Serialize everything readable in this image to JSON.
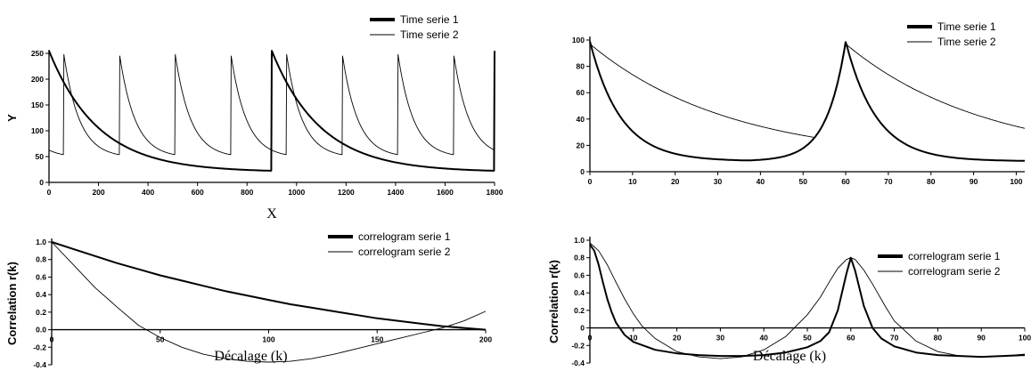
{
  "chart_data": [
    {
      "type": "line",
      "xlabel": "X",
      "ylabel": "Y",
      "xlim": [
        0,
        1800
      ],
      "ylim": [
        0,
        250
      ],
      "xticks": [
        0,
        200,
        400,
        600,
        800,
        1000,
        1200,
        1400,
        1600,
        1800
      ],
      "yticks": [
        0,
        50,
        100,
        150,
        200,
        250
      ],
      "legend": "top-right",
      "series": [
        {
          "name": "Time serie 1",
          "style": "thick",
          "pattern": "decay",
          "period": 900,
          "offset": 0,
          "peak": 255,
          "base": 20,
          "tau": 0.22
        },
        {
          "name": "Time serie 2",
          "style": "thin",
          "pattern": "decay",
          "period": 225,
          "offset": 60,
          "peak": 248,
          "base": 48,
          "tau": 0.28
        }
      ]
    },
    {
      "type": "line",
      "xlabel": "",
      "ylabel": "",
      "xlim": [
        0,
        102
      ],
      "ylim": [
        0,
        100
      ],
      "xticks": [
        0,
        10,
        20,
        30,
        40,
        50,
        60,
        70,
        80,
        90,
        100
      ],
      "yticks": [
        0,
        20,
        40,
        60,
        80,
        100
      ],
      "legend": "top-right",
      "series": [
        {
          "name": "Time serie 1",
          "style": "thick",
          "pattern": "peaks",
          "peaks": [
            0,
            60
          ],
          "peak": 99,
          "base": 8,
          "rise": 4.5,
          "tau": 0.12
        },
        {
          "name": "Time serie 2",
          "style": "thin",
          "pattern": "peaks",
          "peaks": [
            0,
            60
          ],
          "peak": 97,
          "base": 8,
          "rise": 4.5,
          "tau": 0.55
        }
      ]
    },
    {
      "type": "line",
      "xlabel": "Décalage (k)",
      "ylabel": "Correlation r(k)",
      "xlim": [
        0,
        200
      ],
      "ylim": [
        -0.4,
        1.0
      ],
      "xticks": [
        0,
        50,
        100,
        150,
        200
      ],
      "yticks": [
        -0.4,
        -0.2,
        0,
        0.2,
        0.4,
        0.6,
        0.8,
        1.0
      ],
      "legend": "top-right",
      "series": [
        {
          "name": "correlogram serie 1",
          "style": "thick",
          "x": [
            0,
            10,
            20,
            30,
            40,
            50,
            60,
            70,
            80,
            90,
            100,
            110,
            120,
            130,
            140,
            150,
            160,
            170,
            180,
            190,
            200
          ],
          "y": [
            1.0,
            0.92,
            0.84,
            0.76,
            0.69,
            0.62,
            0.56,
            0.5,
            0.44,
            0.39,
            0.34,
            0.29,
            0.25,
            0.21,
            0.17,
            0.13,
            0.1,
            0.07,
            0.04,
            0.02,
            0.0
          ]
        },
        {
          "name": "correlogram serie 2",
          "style": "thin",
          "x": [
            0,
            10,
            20,
            30,
            40,
            50,
            60,
            70,
            80,
            90,
            100,
            110,
            120,
            130,
            140,
            150,
            160,
            170,
            180,
            190,
            200
          ],
          "y": [
            1.0,
            0.74,
            0.48,
            0.26,
            0.05,
            -0.09,
            -0.2,
            -0.28,
            -0.33,
            -0.36,
            -0.37,
            -0.36,
            -0.33,
            -0.28,
            -0.22,
            -0.16,
            -0.1,
            -0.04,
            0.02,
            0.1,
            0.21
          ]
        }
      ]
    },
    {
      "type": "line",
      "xlabel": "Décalage (k)",
      "ylabel": "Correlation r(k)",
      "xlim": [
        0,
        100
      ],
      "ylim": [
        -0.4,
        1.0
      ],
      "xticks": [
        0,
        10,
        20,
        30,
        40,
        50,
        60,
        70,
        80,
        90,
        100
      ],
      "yticks": [
        -0.4,
        -0.2,
        0,
        0.2,
        0.4,
        0.6,
        0.8,
        1.0
      ],
      "legend": "top-right",
      "series": [
        {
          "name": "correlogram serie 1",
          "style": "thick",
          "x": [
            0,
            1,
            2,
            3,
            4,
            5,
            6,
            8,
            10,
            15,
            20,
            25,
            30,
            35,
            40,
            45,
            50,
            53,
            55,
            57,
            59,
            60,
            61,
            63,
            65,
            67,
            70,
            75,
            80,
            85,
            90,
            95,
            100
          ],
          "y": [
            0.95,
            0.88,
            0.72,
            0.52,
            0.33,
            0.18,
            0.06,
            -0.08,
            -0.16,
            -0.25,
            -0.29,
            -0.31,
            -0.32,
            -0.32,
            -0.31,
            -0.28,
            -0.22,
            -0.15,
            -0.05,
            0.2,
            0.62,
            0.8,
            0.65,
            0.25,
            0.0,
            -0.12,
            -0.21,
            -0.28,
            -0.31,
            -0.32,
            -0.33,
            -0.32,
            -0.31
          ]
        },
        {
          "name": "correlogram serie 2",
          "style": "thin",
          "x": [
            0,
            2,
            4,
            6,
            8,
            10,
            12,
            15,
            20,
            25,
            30,
            35,
            40,
            45,
            50,
            53,
            55,
            57,
            59,
            60,
            61,
            63,
            65,
            68,
            70,
            75,
            80,
            85,
            90,
            95,
            100
          ],
          "y": [
            0.97,
            0.88,
            0.72,
            0.52,
            0.33,
            0.16,
            0.02,
            -0.12,
            -0.27,
            -0.33,
            -0.35,
            -0.33,
            -0.25,
            -0.1,
            0.15,
            0.35,
            0.52,
            0.68,
            0.78,
            0.8,
            0.78,
            0.66,
            0.5,
            0.24,
            0.08,
            -0.15,
            -0.27,
            -0.32,
            -0.33,
            -0.32,
            -0.3
          ]
        }
      ]
    }
  ]
}
